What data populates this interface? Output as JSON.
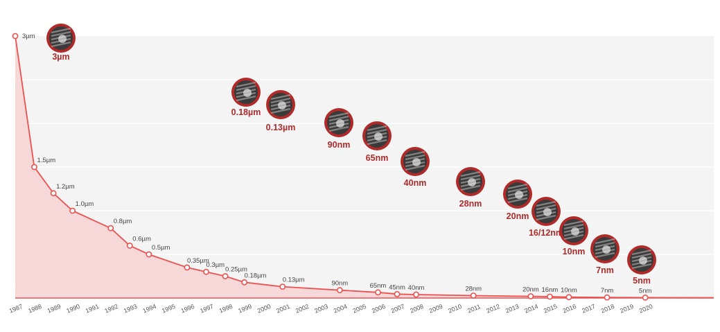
{
  "chart_data": {
    "type": "line",
    "x": [
      "1987",
      "1988",
      "1989",
      "1990",
      "1991",
      "1992",
      "1993",
      "1994",
      "1995",
      "1996",
      "1997",
      "1998",
      "1999",
      "2000",
      "2001",
      "2002",
      "2003",
      "2004",
      "2005",
      "2006",
      "2007",
      "2008",
      "2009",
      "2010",
      "2011",
      "2012",
      "2013",
      "2014",
      "2015",
      "2016",
      "2017",
      "2018",
      "2019",
      "2020"
    ],
    "points": [
      {
        "year": "1987",
        "value": 3,
        "label": "3µm"
      },
      {
        "year": "1988",
        "value": 1.5,
        "label": "1.5µm"
      },
      {
        "year": "1989",
        "value": 1.2,
        "label": "1.2µm"
      },
      {
        "year": "1990",
        "value": 1.0,
        "label": "1.0µm"
      },
      {
        "year": "1992",
        "value": 0.8,
        "label": "0.8µm"
      },
      {
        "year": "1993",
        "value": 0.6,
        "label": "0.6µm"
      },
      {
        "year": "1994",
        "value": 0.5,
        "label": "0.5µm"
      },
      {
        "year": "1996",
        "value": 0.35,
        "label": "0.35µm"
      },
      {
        "year": "1997",
        "value": 0.3,
        "label": "0.3µm"
      },
      {
        "year": "1998",
        "value": 0.25,
        "label": "0.25µm"
      },
      {
        "year": "1999",
        "value": 0.18,
        "label": "0.18µm"
      },
      {
        "year": "2001",
        "value": 0.13,
        "label": "0.13µm"
      },
      {
        "year": "2004",
        "value": 0.09,
        "label": "90nm"
      },
      {
        "year": "2006",
        "value": 0.065,
        "label": "65nm"
      },
      {
        "year": "2007",
        "value": 0.045,
        "label": "45nm"
      },
      {
        "year": "2008",
        "value": 0.04,
        "label": "40nm"
      },
      {
        "year": "2011",
        "value": 0.028,
        "label": "28nm"
      },
      {
        "year": "2014",
        "value": 0.02,
        "label": "20nm"
      },
      {
        "year": "2015",
        "value": 0.016,
        "label": "16nm"
      },
      {
        "year": "2016",
        "value": 0.01,
        "label": "10nm"
      },
      {
        "year": "2018",
        "value": 0.007,
        "label": "7nm"
      },
      {
        "year": "2020",
        "value": 0.005,
        "label": "5nm"
      }
    ],
    "badges": [
      {
        "label": "3µm"
      },
      {
        "label": "0.18µm"
      },
      {
        "label": "0.13µm"
      },
      {
        "label": "90nm"
      },
      {
        "label": "65nm"
      },
      {
        "label": "40nm"
      },
      {
        "label": "28nm"
      },
      {
        "label": "20nm"
      },
      {
        "label": "16/12nm"
      },
      {
        "label": "10nm"
      },
      {
        "label": "7nm"
      },
      {
        "label": "5nm"
      }
    ],
    "ylim": [
      0,
      3
    ],
    "grid": true,
    "colors": {
      "line": "#ee5050",
      "fill": "#f6d2d2",
      "badge_ring": "#b02a2a",
      "badge_label": "#b02a2a",
      "grid_bg": "#f4f4f4"
    }
  }
}
